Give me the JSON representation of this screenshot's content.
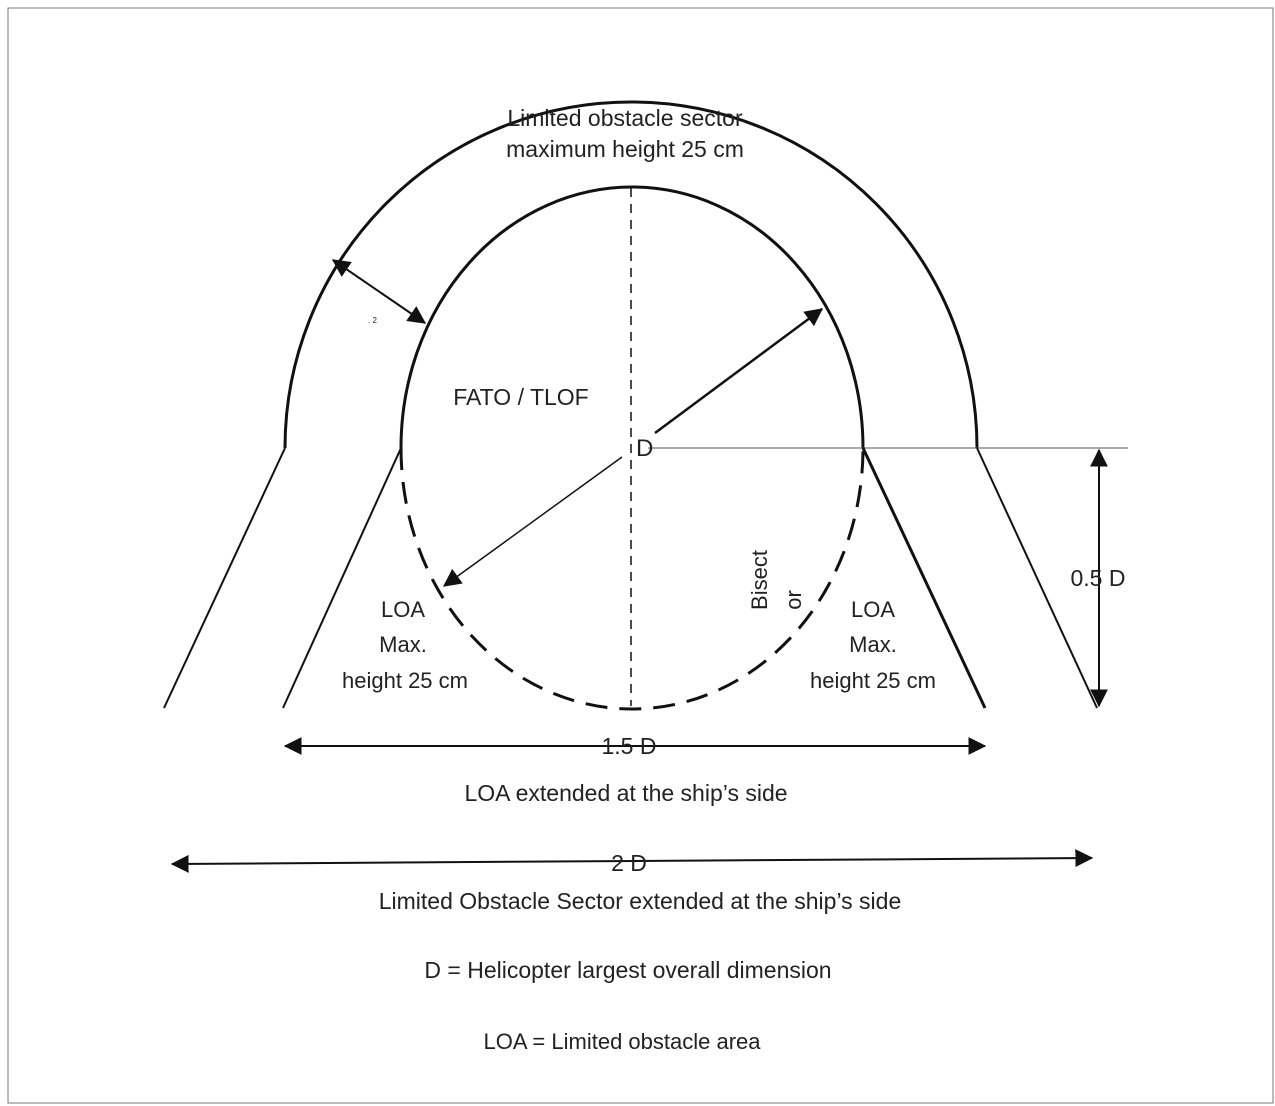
{
  "colors": {
    "stroke": "#111111",
    "frame": "#777777",
    "text": "#222222"
  },
  "labels": {
    "sector_line1": "Limited obstacle sector",
    "sector_line2": "maximum height 25 cm",
    "fato": "FATO / TLOF",
    "center": "D",
    "bisector_line1": "Bisect",
    "bisector_line2": "or",
    "loa_left": [
      "LOA",
      "Max.",
      "height 25 cm"
    ],
    "loa_right": [
      "LOA",
      "Max.",
      "height 25 cm"
    ],
    "half_d": "0.5 D",
    "dim_1_5d": "1.5 D",
    "loa_extended": "LOA extended at the ship’s side",
    "dim_2d": "2 D",
    "sector_extended": "Limited Obstacle Sector extended at the ship’s side",
    "def_d": "D = Helicopter largest overall dimension",
    "def_loa": "LOA = Limited obstacle area",
    "tiny_mark": ". 2"
  }
}
